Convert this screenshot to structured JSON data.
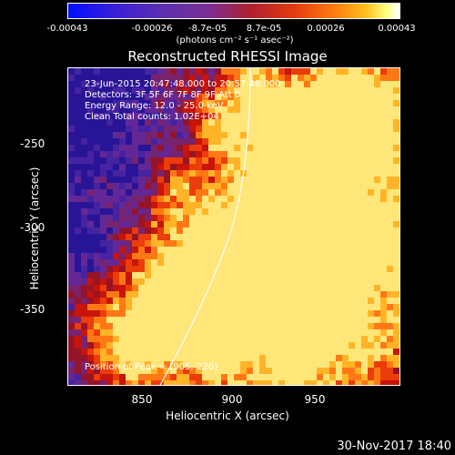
{
  "colorbar": {
    "ticks": [
      "-0.00043",
      "-0.00026",
      "-8.7e-05",
      "8.7e-05",
      "0.00026",
      "0.00043"
    ],
    "units": "(photons cm⁻² s⁻¹ asec⁻²)"
  },
  "title": "Reconstructed RHESSI Image",
  "annotations": {
    "time": "23-Jun-2015 20:47:48.000 to 20:57:48.000",
    "detectors": "Detectors: 3F 5F 6F 7F 8F 9F Att 0",
    "energy": "Energy Range: 12.0 - 25.0 keV",
    "clean": "Clean    Total counts: 1.02E+04",
    "peak": "Position of Peak = [905,-220]"
  },
  "axes": {
    "xlabel": "Heliocentric X (arcsec)",
    "ylabel": "Heliocentric Y (arcsec)",
    "xticks": [
      "850",
      "900",
      "950"
    ],
    "yticks": [
      "-250",
      "-300",
      "-350"
    ]
  },
  "footer": {
    "date": "30-Nov-2017 18:40"
  },
  "colors": {
    "background": "#000000",
    "text": "#ffffff"
  }
}
